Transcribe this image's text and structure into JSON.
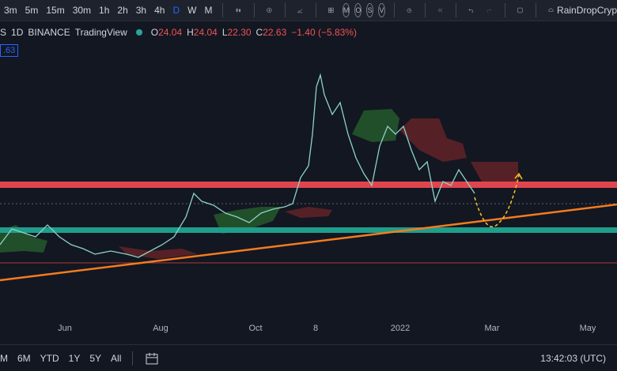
{
  "toolbar": {
    "intervals": [
      "3m",
      "5m",
      "15m",
      "30m",
      "1h",
      "2h",
      "3h",
      "4h",
      "D",
      "W",
      "M"
    ],
    "circles": [
      "M",
      "O",
      "S",
      "V"
    ],
    "user": "RainDropCryp"
  },
  "legend": {
    "symbol": "S",
    "interval": "1D",
    "exchange": "BINANCE",
    "source": "TradingView",
    "ohlc": [
      {
        "key": "O",
        "value": "24.04"
      },
      {
        "key": "H",
        "value": "24.04"
      },
      {
        "key": "L",
        "value": "22.30"
      },
      {
        "key": "C",
        "value": "22.63"
      }
    ],
    "change": "−1.40 (−5.83%)"
  },
  "price_tag": ".63",
  "time_axis": [
    "Jun",
    "Aug",
    "Oct",
    "8",
    "2022",
    "Mar",
    "May"
  ],
  "bottom": {
    "ranges": [
      "M",
      "6M",
      "YTD",
      "1Y",
      "5Y",
      "All"
    ],
    "clock": "13:42:03 (UTC)"
  }
}
